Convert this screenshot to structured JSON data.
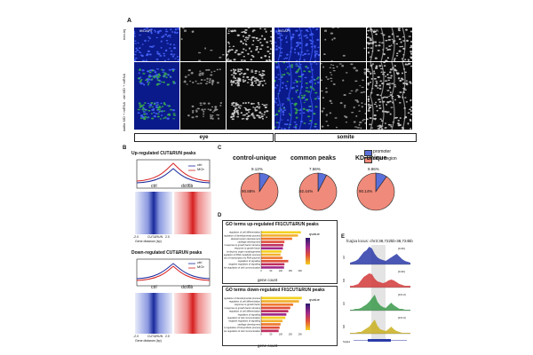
{
  "panel_a": {
    "label": "A",
    "col_headers": [
      "Ifi/DAPI",
      "Ifi",
      "DAPI",
      "Ifi/DAPI",
      "Ifi",
      "DAPI"
    ],
    "row_labels": [
      "non-inj",
      "ctrl MO + mRNA",
      "axitla MO + mRNA"
    ],
    "scale_text": "20 μm",
    "group_labels": [
      "eye",
      "somite"
    ]
  },
  "panel_b": {
    "label": "B",
    "up_title": "Up-regulated CUT&RUN peaks",
    "down_title": "Down-regulated CUT&RUN peaks",
    "legend": [
      "ctrl",
      "MOr"
    ],
    "axis_ticks": [
      "-2.0",
      "CUT&RUN",
      "2.0"
    ],
    "xlabel": "Gene distance (bp)",
    "heatmap_labels": [
      "ctrl",
      "dctl6b"
    ],
    "colors": {
      "ctrl": "#1a2a9c",
      "treated": "#d62020"
    }
  },
  "panel_c": {
    "label": "C",
    "legend": [
      "promoter",
      "other region"
    ],
    "colors": {
      "promoter": "#5b6fd9",
      "other": "#f08a7a"
    }
  },
  "chart_data": [
    {
      "type": "pie",
      "title": "control-unique",
      "categories": [
        "promoter",
        "other region"
      ],
      "values": [
        9.12,
        90.88
      ]
    },
    {
      "type": "pie",
      "title": "common peaks",
      "categories": [
        "promoter",
        "other region"
      ],
      "values": [
        7.56,
        92.44
      ]
    },
    {
      "type": "pie",
      "title": "KD-unique",
      "categories": [
        "promoter",
        "other region"
      ],
      "values": [
        9.86,
        90.14
      ]
    }
  ],
  "panel_d": {
    "label": "D",
    "up_title": "GO terms up-regulated FlI1CUT&RUN peaks",
    "down_title": "GO terms down-regulated FlI1CUT&RUN peaks",
    "xlabel": "gene count",
    "legend_title": "qvalue",
    "up_terms": [
      "regulation of cell differentiation",
      "regulation of developmental process",
      "skeletal system development",
      "cartilage development",
      "cellular response to growth factor stimulus",
      "response to growth factor",
      "embryonic organ morphogenesis",
      "negative regulation of RNA metabolic process",
      "negative regulation of transcription by RNA polymer",
      "regulation of signaling",
      "negative regulation of signaling",
      "negative regulation of cell communication"
    ],
    "up_counts": [
      205,
      190,
      160,
      120,
      115,
      112,
      105,
      100,
      110,
      140,
      120,
      118
    ],
    "down_terms": [
      "regulation of developmental process",
      "regulation of cell differentiation",
      "response to growth factor",
      "cellular response to growth factor stimulus",
      "regulation of cell differentiation",
      "regulation of signaling",
      "regulation of cell communication",
      "negative regulation of signaling",
      "cartilage development",
      "negative regulation of biosynthetic process",
      "negative regulation of cell communication"
    ],
    "down_counts": [
      210,
      195,
      165,
      150,
      140,
      130,
      125,
      110,
      100,
      95,
      90
    ],
    "x_ticks_up": [
      "0",
      "50",
      "100",
      "150",
      "200"
    ],
    "x_ticks_down": [
      "0",
      "50",
      "100",
      "150",
      "200"
    ]
  },
  "panel_e": {
    "label": "E",
    "locus": "fcaj1a locus: chr3:38,722kb-38,724kb",
    "track_labels": [
      "ctrl",
      "KD",
      "ctrl",
      "KD"
    ],
    "ranges": [
      "[0-30]",
      "[0-30]",
      "[0-5.0]",
      "[0-5.0]"
    ],
    "gene_label": "fcaj1a",
    "colors": [
      "#2a3aa8",
      "#d23a3a",
      "#3a9a4a",
      "#c9b020"
    ]
  }
}
